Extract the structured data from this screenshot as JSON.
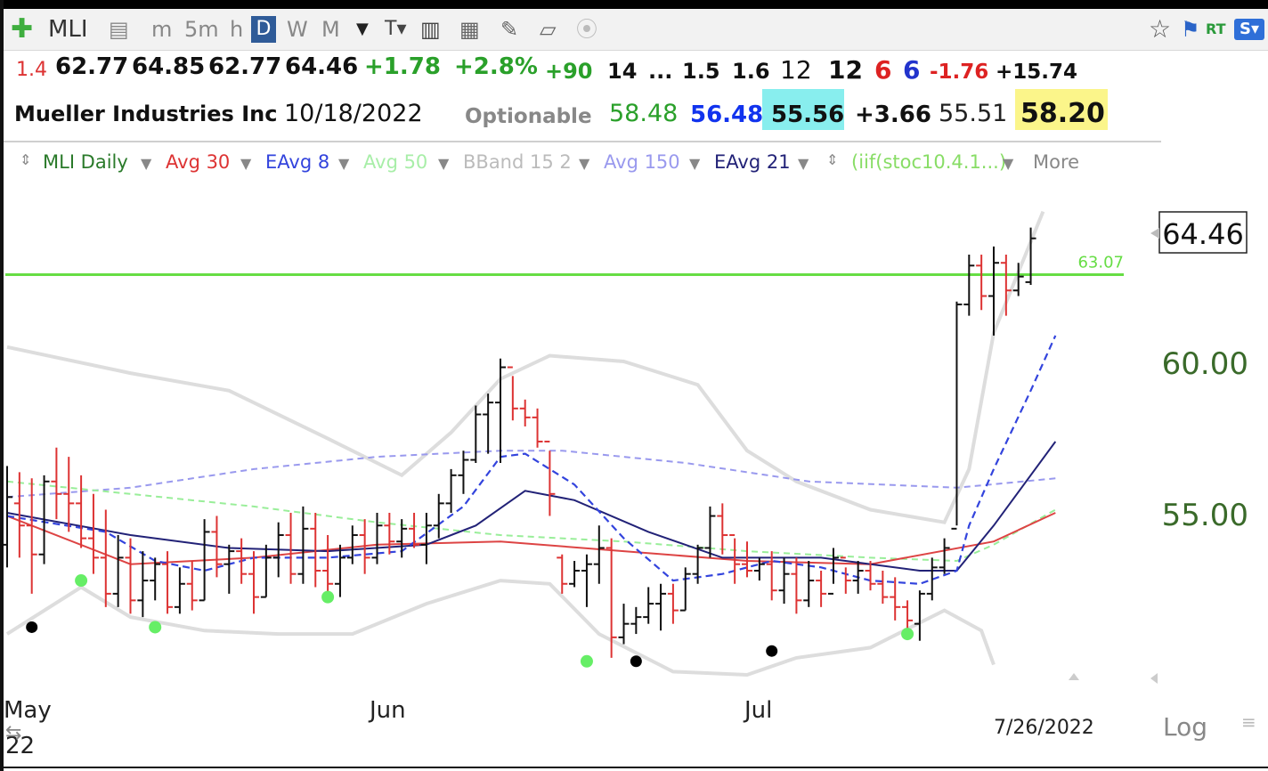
{
  "toolbar": {
    "symbol": "MLI",
    "intervals": [
      "m",
      "5m",
      "h",
      "D",
      "W",
      "M"
    ],
    "selected_interval": "D",
    "rt_label": "RT"
  },
  "quote": {
    "row1": [
      "1.4",
      "62.77",
      "64.85",
      "62.77",
      "64.46",
      "+1.78",
      "+2.8%",
      "+90",
      "14",
      "...",
      "1.5",
      "1.6",
      "12",
      "12",
      "6",
      "6",
      "-1.76",
      "+15.74"
    ],
    "company": "Mueller Industries Inc",
    "date": "10/18/2022",
    "optionable": "Optionable",
    "values": [
      "58.48",
      "56.48",
      "55.56",
      "+3.66",
      "55.51",
      "58.20"
    ]
  },
  "legend": {
    "items": [
      "MLI Daily",
      "Avg 30",
      "EAvg 8",
      "Avg 50",
      "BBand 15 2",
      "Avg 150",
      "EAvg 21",
      "(iif(stoc10.4.1...)"
    ],
    "more": "More"
  },
  "chart_data": {
    "type": "bar",
    "title": "MLI Daily",
    "x_tick_labels": [
      "May",
      "Jun",
      "Jul"
    ],
    "x_year_label": "22",
    "cursor_date": "7/26/2022",
    "scale_label": "Log",
    "y_ticks": [
      "55.00",
      "60.00"
    ],
    "ylim": [
      50.5,
      65.5
    ],
    "last_price_label": "64.46",
    "horizontal_line": {
      "value": 63.07,
      "label": "63.07",
      "color": "#66dd44"
    },
    "colors": {
      "up": "#111111",
      "down": "#dd3333",
      "avg30": "#dd4444",
      "eavg8": "#3344dd",
      "avg50": "#99ee99",
      "avg150": "#9999ee",
      "eavg21": "#222277",
      "bband": "#dddddd",
      "signal_green": "#66ee66",
      "signal_black": "#000000"
    },
    "bars": [
      [
        54.0,
        56.5,
        53.3,
        55.5
      ],
      [
        55.3,
        56.3,
        53.6,
        54.6
      ],
      [
        54.6,
        56.1,
        52.5,
        53.7
      ],
      [
        53.7,
        56.2,
        53.4,
        56.0
      ],
      [
        56.0,
        57.1,
        54.8,
        55.6
      ],
      [
        55.6,
        56.8,
        54.4,
        55.3
      ],
      [
        55.3,
        56.2,
        53.9,
        54.2
      ],
      [
        54.2,
        55.6,
        53.1,
        53.6
      ],
      [
        53.6,
        55.1,
        52.1,
        52.5
      ],
      [
        52.5,
        54.3,
        52.1,
        53.6
      ],
      [
        53.6,
        54.2,
        51.9,
        52.3
      ],
      [
        52.3,
        53.8,
        51.8,
        52.9
      ],
      [
        52.9,
        53.6,
        52.3,
        53.4
      ],
      [
        53.4,
        53.8,
        51.9,
        52.1
      ],
      [
        52.1,
        53.3,
        51.9,
        52.8
      ],
      [
        52.8,
        53.5,
        52.0,
        52.3
      ],
      [
        52.3,
        54.8,
        52.3,
        54.4
      ],
      [
        54.4,
        54.9,
        53.0,
        53.4
      ],
      [
        53.4,
        54.0,
        52.5,
        53.8
      ],
      [
        53.8,
        54.2,
        52.8,
        53.1
      ],
      [
        53.1,
        53.8,
        51.9,
        52.4
      ],
      [
        52.4,
        54.0,
        52.4,
        53.6
      ],
      [
        53.6,
        54.7,
        53.0,
        54.3
      ],
      [
        54.3,
        55.0,
        52.8,
        53.1
      ],
      [
        53.1,
        55.2,
        52.8,
        54.5
      ],
      [
        54.5,
        55.0,
        52.7,
        53.2
      ],
      [
        53.2,
        54.3,
        52.4,
        52.8
      ],
      [
        52.8,
        54.0,
        52.4,
        53.6
      ],
      [
        53.6,
        54.6,
        53.4,
        54.3
      ],
      [
        54.3,
        54.8,
        53.1,
        53.6
      ],
      [
        53.6,
        55.0,
        53.4,
        54.6
      ],
      [
        54.6,
        55.0,
        53.7,
        54.1
      ],
      [
        54.1,
        54.8,
        53.6,
        54.5
      ],
      [
        54.5,
        55.0,
        53.9,
        54.0
      ],
      [
        54.0,
        55.0,
        53.4,
        54.6
      ],
      [
        54.6,
        55.6,
        54.2,
        55.3
      ],
      [
        55.3,
        56.4,
        55.0,
        56.2
      ],
      [
        56.2,
        57.0,
        55.6,
        56.7
      ],
      [
        56.7,
        58.5,
        56.6,
        58.2
      ],
      [
        58.2,
        58.9,
        56.9,
        58.6
      ],
      [
        58.6,
        60.1,
        56.6,
        59.8
      ],
      [
        59.8,
        59.5,
        58.0,
        58.4
      ],
      [
        58.4,
        58.7,
        57.8,
        58.1
      ],
      [
        58.1,
        58.4,
        57.1,
        57.3
      ],
      [
        57.3,
        57.0,
        54.9,
        55.6
      ],
      [
        53.6,
        53.7,
        52.5,
        52.8
      ],
      [
        52.8,
        53.5,
        52.7,
        53.2
      ],
      [
        53.2,
        53.7,
        52.1,
        53.4
      ],
      [
        53.4,
        54.6,
        52.8,
        53.9
      ],
      [
        53.9,
        54.2,
        50.6,
        51.2
      ],
      [
        51.2,
        52.2,
        51.0,
        51.6
      ],
      [
        51.6,
        52.1,
        51.3,
        51.8
      ],
      [
        51.8,
        52.7,
        51.6,
        52.2
      ],
      [
        52.2,
        52.8,
        51.4,
        52.5
      ],
      [
        52.5,
        52.8,
        51.6,
        52.0
      ],
      [
        52.0,
        53.3,
        52.0,
        53.1
      ],
      [
        53.1,
        54.0,
        52.8,
        53.9
      ],
      [
        53.9,
        55.2,
        53.6,
        54.9
      ],
      [
        54.9,
        55.3,
        53.7,
        54.3
      ],
      [
        54.3,
        54.2,
        52.8,
        53.4
      ],
      [
        53.4,
        54.1,
        53.0,
        53.2
      ],
      [
        53.2,
        53.6,
        52.9,
        53.4
      ],
      [
        53.4,
        53.8,
        52.3,
        52.6
      ],
      [
        52.6,
        53.6,
        52.2,
        53.1
      ],
      [
        53.1,
        53.6,
        51.9,
        52.3
      ],
      [
        52.3,
        53.5,
        52.1,
        52.9
      ],
      [
        52.9,
        53.2,
        52.1,
        52.5
      ],
      [
        52.5,
        53.9,
        52.8,
        53.6
      ],
      [
        53.6,
        53.3,
        52.5,
        52.9
      ],
      [
        52.9,
        53.5,
        52.5,
        53.2
      ],
      [
        53.2,
        53.5,
        52.6,
        52.8
      ],
      [
        52.8,
        53.2,
        52.2,
        52.4
      ],
      [
        52.4,
        53.0,
        51.7,
        52.1
      ],
      [
        52.1,
        52.3,
        51.4,
        51.7
      ],
      [
        51.6,
        52.6,
        51.1,
        52.5
      ],
      [
        52.5,
        53.6,
        52.3,
        53.3
      ],
      [
        53.3,
        54.2,
        53.1,
        53.9
      ],
      [
        54.5,
        62.1,
        54.6,
        62.0
      ],
      [
        62.0,
        63.8,
        61.6,
        63.4
      ],
      [
        63.4,
        63.8,
        61.8,
        62.3
      ],
      [
        62.3,
        64.1,
        60.9,
        63.5
      ],
      [
        63.5,
        63.8,
        61.6,
        62.5
      ],
      [
        62.5,
        63.5,
        62.3,
        63.0
      ],
      [
        62.8,
        64.8,
        62.7,
        64.4
      ]
    ],
    "avg30": [
      [
        0,
        54.9
      ],
      [
        10,
        53.4
      ],
      [
        20,
        53.6
      ],
      [
        30,
        54.0
      ],
      [
        40,
        54.1
      ],
      [
        50,
        53.8
      ],
      [
        60,
        53.5
      ],
      [
        70,
        53.4
      ],
      [
        80,
        54.1
      ],
      [
        85,
        55.0
      ]
    ],
    "eavg8": [
      [
        0,
        54.9
      ],
      [
        8,
        54.4
      ],
      [
        12,
        53.5
      ],
      [
        16,
        53.2
      ],
      [
        20,
        53.6
      ],
      [
        26,
        53.6
      ],
      [
        32,
        53.8
      ],
      [
        37,
        55.2
      ],
      [
        40,
        56.8
      ],
      [
        42,
        56.9
      ],
      [
        46,
        55.9
      ],
      [
        50,
        54.2
      ],
      [
        54,
        52.9
      ],
      [
        58,
        53.1
      ],
      [
        62,
        53.5
      ],
      [
        66,
        53.3
      ],
      [
        70,
        52.9
      ],
      [
        74,
        52.8
      ],
      [
        77,
        53.2
      ],
      [
        78,
        54.6
      ],
      [
        80,
        56.4
      ],
      [
        83,
        59.0
      ],
      [
        85,
        60.9
      ]
    ],
    "eavg21": [
      [
        0,
        55.0
      ],
      [
        10,
        54.3
      ],
      [
        18,
        53.9
      ],
      [
        26,
        53.8
      ],
      [
        34,
        54.0
      ],
      [
        38,
        54.6
      ],
      [
        42,
        55.7
      ],
      [
        46,
        55.4
      ],
      [
        52,
        54.4
      ],
      [
        58,
        53.6
      ],
      [
        66,
        53.6
      ],
      [
        74,
        53.2
      ],
      [
        77,
        53.2
      ],
      [
        80,
        54.6
      ],
      [
        85,
        57.3
      ]
    ],
    "avg50": [
      [
        0,
        56.0
      ],
      [
        10,
        55.6
      ],
      [
        20,
        55.2
      ],
      [
        30,
        54.7
      ],
      [
        40,
        54.3
      ],
      [
        50,
        54.1
      ],
      [
        60,
        53.8
      ],
      [
        70,
        53.6
      ],
      [
        77,
        53.5
      ],
      [
        80,
        54.0
      ],
      [
        85,
        55.1
      ]
    ],
    "avg150": [
      [
        0,
        55.5
      ],
      [
        10,
        55.8
      ],
      [
        20,
        56.4
      ],
      [
        30,
        56.8
      ],
      [
        40,
        57.0
      ],
      [
        45,
        57.0
      ],
      [
        55,
        56.6
      ],
      [
        65,
        56.0
      ],
      [
        77,
        55.8
      ],
      [
        85,
        56.1
      ]
    ],
    "bband_upper": [
      [
        0,
        60.5
      ],
      [
        10,
        59.6
      ],
      [
        18,
        59.0
      ],
      [
        26,
        57.4
      ],
      [
        32,
        56.2
      ],
      [
        36,
        57.6
      ],
      [
        40,
        59.4
      ],
      [
        44,
        60.2
      ],
      [
        50,
        60.0
      ],
      [
        56,
        59.2
      ],
      [
        60,
        57.0
      ],
      [
        64,
        56.0
      ],
      [
        70,
        55.1
      ],
      [
        76,
        54.7
      ],
      [
        78,
        56.4
      ],
      [
        80,
        61.0
      ],
      [
        84,
        65.4
      ]
    ],
    "bband_lower": [
      [
        0,
        51.3
      ],
      [
        6,
        52.7
      ],
      [
        10,
        51.8
      ],
      [
        16,
        51.4
      ],
      [
        22,
        51.3
      ],
      [
        28,
        51.3
      ],
      [
        34,
        52.2
      ],
      [
        40,
        52.9
      ],
      [
        44,
        52.8
      ],
      [
        48,
        51.3
      ],
      [
        54,
        50.2
      ],
      [
        60,
        50.1
      ],
      [
        64,
        50.6
      ],
      [
        70,
        50.9
      ],
      [
        76,
        52.0
      ],
      [
        79,
        51.4
      ],
      [
        80,
        50.4
      ]
    ],
    "signals_green": [
      [
        6,
        52.9
      ],
      [
        12,
        51.5
      ],
      [
        26,
        52.4
      ],
      [
        47,
        50.5
      ],
      [
        73,
        51.3
      ]
    ],
    "signals_black": [
      [
        2,
        51.5
      ],
      [
        51,
        50.5
      ],
      [
        62,
        50.8
      ]
    ]
  }
}
